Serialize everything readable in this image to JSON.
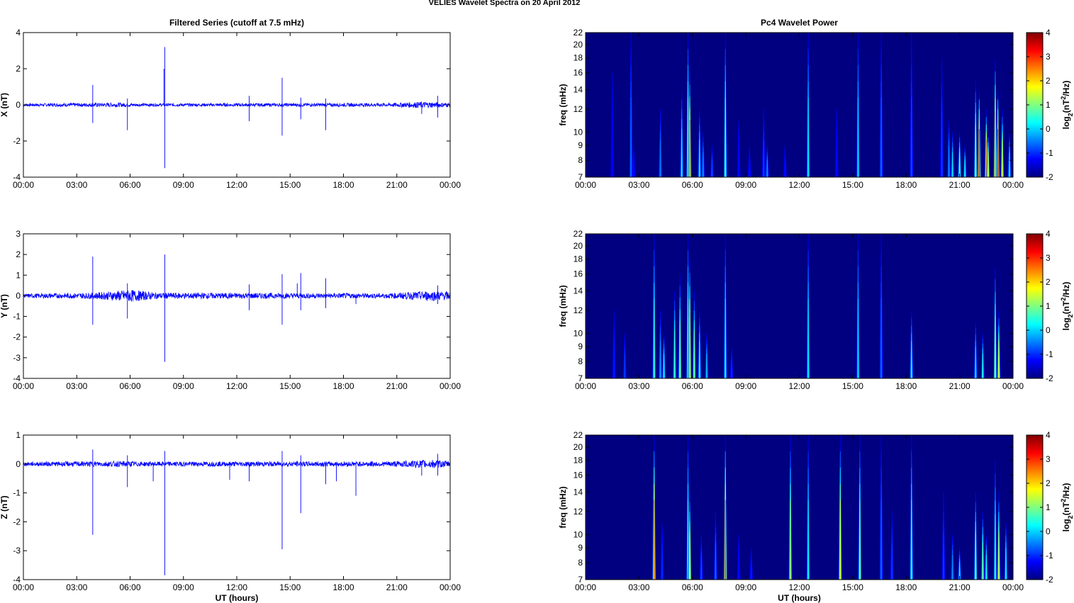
{
  "figure": {
    "title": "VELIES Wavelet Spectra on 20 April     2012",
    "left_title": "Filtered Series (cutoff at 7.5 mHz)",
    "right_title": "Pc4 Wavelet Power"
  },
  "chart_data": [
    {
      "type": "line",
      "id": "x-series",
      "title": "Filtered Series (cutoff at 7.5 mHz)",
      "ylabel": "X (nT)",
      "xlabel": "",
      "xlim": [
        0,
        24
      ],
      "ylim": [
        -4,
        4
      ],
      "yticks": [
        -4,
        -2,
        0,
        2,
        4
      ],
      "xticks": [
        "00:00",
        "03:00",
        "06:00",
        "09:00",
        "12:00",
        "15:00",
        "18:00",
        "21:00",
        "00:00"
      ],
      "series": [
        {
          "color": "#0000ff",
          "noise": [
            [
              0,
              0.08
            ],
            [
              5.5,
              0.12
            ],
            [
              6.5,
              0.08
            ],
            [
              20.5,
              0.1
            ],
            [
              22.5,
              0.18
            ],
            [
              24,
              0.12
            ]
          ],
          "spikes": [
            [
              3.9,
              1.1
            ],
            [
              3.9,
              -1.0
            ],
            [
              5.85,
              -1.4
            ],
            [
              5.85,
              0.35
            ],
            [
              7.95,
              3.2
            ],
            [
              7.95,
              -3.5
            ],
            [
              7.9,
              2.0
            ],
            [
              12.7,
              -0.9
            ],
            [
              12.7,
              0.5
            ],
            [
              14.55,
              1.5
            ],
            [
              14.55,
              -1.7
            ],
            [
              15.6,
              -0.8
            ],
            [
              15.6,
              0.4
            ],
            [
              17.0,
              -1.4
            ],
            [
              17.0,
              0.35
            ],
            [
              22.4,
              -0.5
            ],
            [
              23.3,
              -0.7
            ],
            [
              23.3,
              0.5
            ]
          ]
        }
      ]
    },
    {
      "type": "line",
      "id": "y-series",
      "title": "",
      "ylabel": "Y (nT)",
      "xlabel": "",
      "xlim": [
        0,
        24
      ],
      "ylim": [
        -4,
        3
      ],
      "yticks": [
        -4,
        -3,
        -2,
        -1,
        0,
        1,
        2,
        3
      ],
      "xticks": [
        "00:00",
        "03:00",
        "06:00",
        "09:00",
        "12:00",
        "15:00",
        "18:00",
        "21:00",
        "00:00"
      ],
      "series": [
        {
          "color": "#0000ff",
          "noise": [
            [
              0,
              0.1
            ],
            [
              4,
              0.15
            ],
            [
              6,
              0.3
            ],
            [
              7.5,
              0.15
            ],
            [
              20.5,
              0.12
            ],
            [
              23,
              0.25
            ],
            [
              24,
              0.2
            ]
          ],
          "spikes": [
            [
              3.9,
              1.9
            ],
            [
              3.9,
              -1.4
            ],
            [
              5.85,
              -1.1
            ],
            [
              5.85,
              0.6
            ],
            [
              7.95,
              2.0
            ],
            [
              7.95,
              -3.2
            ],
            [
              12.7,
              0.55
            ],
            [
              12.7,
              -0.7
            ],
            [
              14.55,
              1.05
            ],
            [
              14.55,
              -1.4
            ],
            [
              15.4,
              0.6
            ],
            [
              15.6,
              1.1
            ],
            [
              15.6,
              -0.7
            ],
            [
              17.0,
              0.85
            ],
            [
              17.0,
              -0.6
            ],
            [
              18.7,
              -0.4
            ],
            [
              23.3,
              0.5
            ],
            [
              23.3,
              -0.4
            ]
          ]
        }
      ]
    },
    {
      "type": "line",
      "id": "z-series",
      "title": "",
      "ylabel": "Z (nT)",
      "xlabel": "UT (hours)",
      "xlim": [
        0,
        24
      ],
      "ylim": [
        -4,
        1
      ],
      "yticks": [
        -4,
        -3,
        -2,
        -1,
        0,
        1
      ],
      "xticks": [
        "00:00",
        "03:00",
        "06:00",
        "09:00",
        "12:00",
        "15:00",
        "18:00",
        "21:00",
        "00:00"
      ],
      "series": [
        {
          "color": "#0000ff",
          "noise": [
            [
              0,
              0.07
            ],
            [
              5.5,
              0.1
            ],
            [
              7,
              0.08
            ],
            [
              20.5,
              0.09
            ],
            [
              23,
              0.15
            ],
            [
              24,
              0.1
            ]
          ],
          "spikes": [
            [
              3.9,
              0.5
            ],
            [
              3.9,
              -2.45
            ],
            [
              5.85,
              -0.8
            ],
            [
              5.85,
              0.3
            ],
            [
              7.95,
              0.45
            ],
            [
              7.95,
              -3.85
            ],
            [
              7.3,
              -0.6
            ],
            [
              11.6,
              -0.55
            ],
            [
              12.7,
              -0.6
            ],
            [
              14.55,
              0.45
            ],
            [
              14.55,
              -2.95
            ],
            [
              15.6,
              -1.7
            ],
            [
              15.6,
              0.3
            ],
            [
              17.0,
              -0.7
            ],
            [
              17.6,
              -0.6
            ],
            [
              18.7,
              -1.1
            ],
            [
              22.4,
              -0.4
            ],
            [
              23.3,
              -0.4
            ],
            [
              23.3,
              0.35
            ]
          ]
        }
      ]
    },
    {
      "type": "heatmap",
      "id": "x-power",
      "title": "Pc4 Wavelet Power",
      "ylabel": "freq (mHz)",
      "xlabel": "",
      "xlim": [
        0,
        24
      ],
      "ylim": [
        7,
        22
      ],
      "yscale": "log",
      "yticks": [
        7,
        8,
        9,
        10,
        12,
        14,
        16,
        18,
        20,
        22
      ],
      "xticks": [
        "00:00",
        "03:00",
        "06:00",
        "09:00",
        "12:00",
        "15:00",
        "18:00",
        "21:00",
        "00:00"
      ],
      "colorbar": {
        "label": "log2(nT2/Hz)",
        "min": -2,
        "max": 4,
        "ticks": [
          4,
          3,
          2,
          1,
          0,
          -1,
          -2
        ]
      },
      "background": -2,
      "streaks": [
        [
          2.55,
          22,
          -0.6
        ],
        [
          1.5,
          16,
          -1.3
        ],
        [
          2.7,
          9,
          -1.2
        ],
        [
          4.2,
          12,
          -0.5
        ],
        [
          5.4,
          14,
          0.2
        ],
        [
          5.75,
          22,
          1.0
        ],
        [
          5.85,
          16,
          2.6
        ],
        [
          6.4,
          12,
          0.2
        ],
        [
          6.6,
          10,
          -0.4
        ],
        [
          7.1,
          9,
          -0.8
        ],
        [
          7.85,
          22,
          0.8
        ],
        [
          8.6,
          11,
          -1.2
        ],
        [
          9.2,
          9,
          -1.2
        ],
        [
          10.0,
          12,
          -0.9
        ],
        [
          10.2,
          9,
          -0.4
        ],
        [
          11.2,
          9,
          -1.2
        ],
        [
          12.5,
          22,
          0.2
        ],
        [
          14.1,
          12,
          -1.2
        ],
        [
          15.3,
          22,
          0.1
        ],
        [
          16.6,
          22,
          -0.6
        ],
        [
          18.3,
          22,
          -0.8
        ],
        [
          20.0,
          18,
          -0.9
        ],
        [
          20.4,
          11,
          -0.4
        ],
        [
          20.6,
          10,
          0.1
        ],
        [
          21.0,
          10,
          0.9
        ],
        [
          21.3,
          9,
          0.3
        ],
        [
          21.9,
          15,
          1.2
        ],
        [
          22.1,
          14,
          3.2
        ],
        [
          22.5,
          12,
          2.4
        ],
        [
          22.6,
          10,
          1.6
        ],
        [
          23.0,
          18,
          2.3
        ],
        [
          23.15,
          14,
          3.4
        ],
        [
          23.4,
          12,
          1.5
        ],
        [
          23.8,
          10,
          0.2
        ]
      ]
    },
    {
      "type": "heatmap",
      "id": "y-power",
      "title": "",
      "ylabel": "freq (mHz)",
      "xlabel": "",
      "xlim": [
        0,
        24
      ],
      "ylim": [
        7,
        22
      ],
      "yscale": "log",
      "yticks": [
        7,
        8,
        9,
        10,
        12,
        14,
        16,
        18,
        20,
        22
      ],
      "xticks": [
        "00:00",
        "03:00",
        "06:00",
        "09:00",
        "12:00",
        "15:00",
        "18:00",
        "21:00",
        "00:00"
      ],
      "colorbar": {
        "label": "log2(nT2/Hz)",
        "min": -2,
        "max": 4,
        "ticks": [
          4,
          3,
          2,
          1,
          0,
          -1,
          -2
        ]
      },
      "background": -2,
      "streaks": [
        [
          1.6,
          12,
          -1.1
        ],
        [
          2.2,
          10,
          -0.9
        ],
        [
          3.85,
          22,
          0.6
        ],
        [
          4.2,
          12,
          -0.3
        ],
        [
          4.4,
          10,
          0.3
        ],
        [
          5.0,
          14,
          0.6
        ],
        [
          5.3,
          16,
          1.0
        ],
        [
          5.75,
          22,
          0.9
        ],
        [
          5.85,
          18,
          2.2
        ],
        [
          6.1,
          14,
          0.9
        ],
        [
          6.4,
          12,
          0.4
        ],
        [
          6.8,
          10,
          -0.1
        ],
        [
          7.85,
          22,
          0.3
        ],
        [
          8.2,
          9,
          -1.0
        ],
        [
          12.5,
          22,
          0.2
        ],
        [
          15.3,
          22,
          0.1
        ],
        [
          16.6,
          22,
          -0.6
        ],
        [
          18.3,
          12,
          0.3
        ],
        [
          21.9,
          11,
          0.1
        ],
        [
          22.3,
          10,
          0.4
        ],
        [
          23.0,
          17,
          1.2
        ],
        [
          23.2,
          12,
          1.6
        ]
      ]
    },
    {
      "type": "heatmap",
      "id": "z-power",
      "title": "",
      "ylabel": "freq (mHz)",
      "xlabel": "UT (hours)",
      "xlim": [
        0,
        24
      ],
      "ylim": [
        7,
        22
      ],
      "yscale": "log",
      "yticks": [
        7,
        8,
        9,
        10,
        12,
        14,
        16,
        18,
        20,
        22
      ],
      "xticks": [
        "00:00",
        "03:00",
        "06:00",
        "09:00",
        "12:00",
        "15:00",
        "18:00",
        "21:00",
        "00:00"
      ],
      "colorbar": {
        "label": "log2(nT2/Hz)",
        "min": -2,
        "max": 4,
        "ticks": [
          4,
          3,
          2,
          1,
          0,
          -1,
          -2
        ]
      },
      "background": -2,
      "streaks": [
        [
          3.85,
          22,
          2.6
        ],
        [
          4.3,
          11,
          -1.0
        ],
        [
          5.75,
          22,
          0.6
        ],
        [
          5.85,
          14,
          1.8
        ],
        [
          6.5,
          10,
          -0.8
        ],
        [
          7.3,
          12,
          -0.6
        ],
        [
          7.85,
          22,
          3.0
        ],
        [
          8.6,
          10,
          -1.2
        ],
        [
          9.3,
          9,
          -1.1
        ],
        [
          11.5,
          22,
          1.2
        ],
        [
          12.5,
          22,
          0.3
        ],
        [
          14.3,
          22,
          1.6
        ],
        [
          15.4,
          22,
          1.0
        ],
        [
          16.6,
          22,
          -0.6
        ],
        [
          17.2,
          12,
          -0.9
        ],
        [
          18.3,
          22,
          0.6
        ],
        [
          20.1,
          14,
          -0.9
        ],
        [
          20.6,
          10,
          -0.4
        ],
        [
          21.0,
          9,
          0.2
        ],
        [
          21.9,
          14,
          1.0
        ],
        [
          22.3,
          12,
          0.9
        ],
        [
          22.5,
          10,
          0.3
        ],
        [
          23.0,
          18,
          0.5
        ],
        [
          23.2,
          14,
          1.5
        ],
        [
          23.6,
          11,
          0.3
        ]
      ]
    }
  ]
}
